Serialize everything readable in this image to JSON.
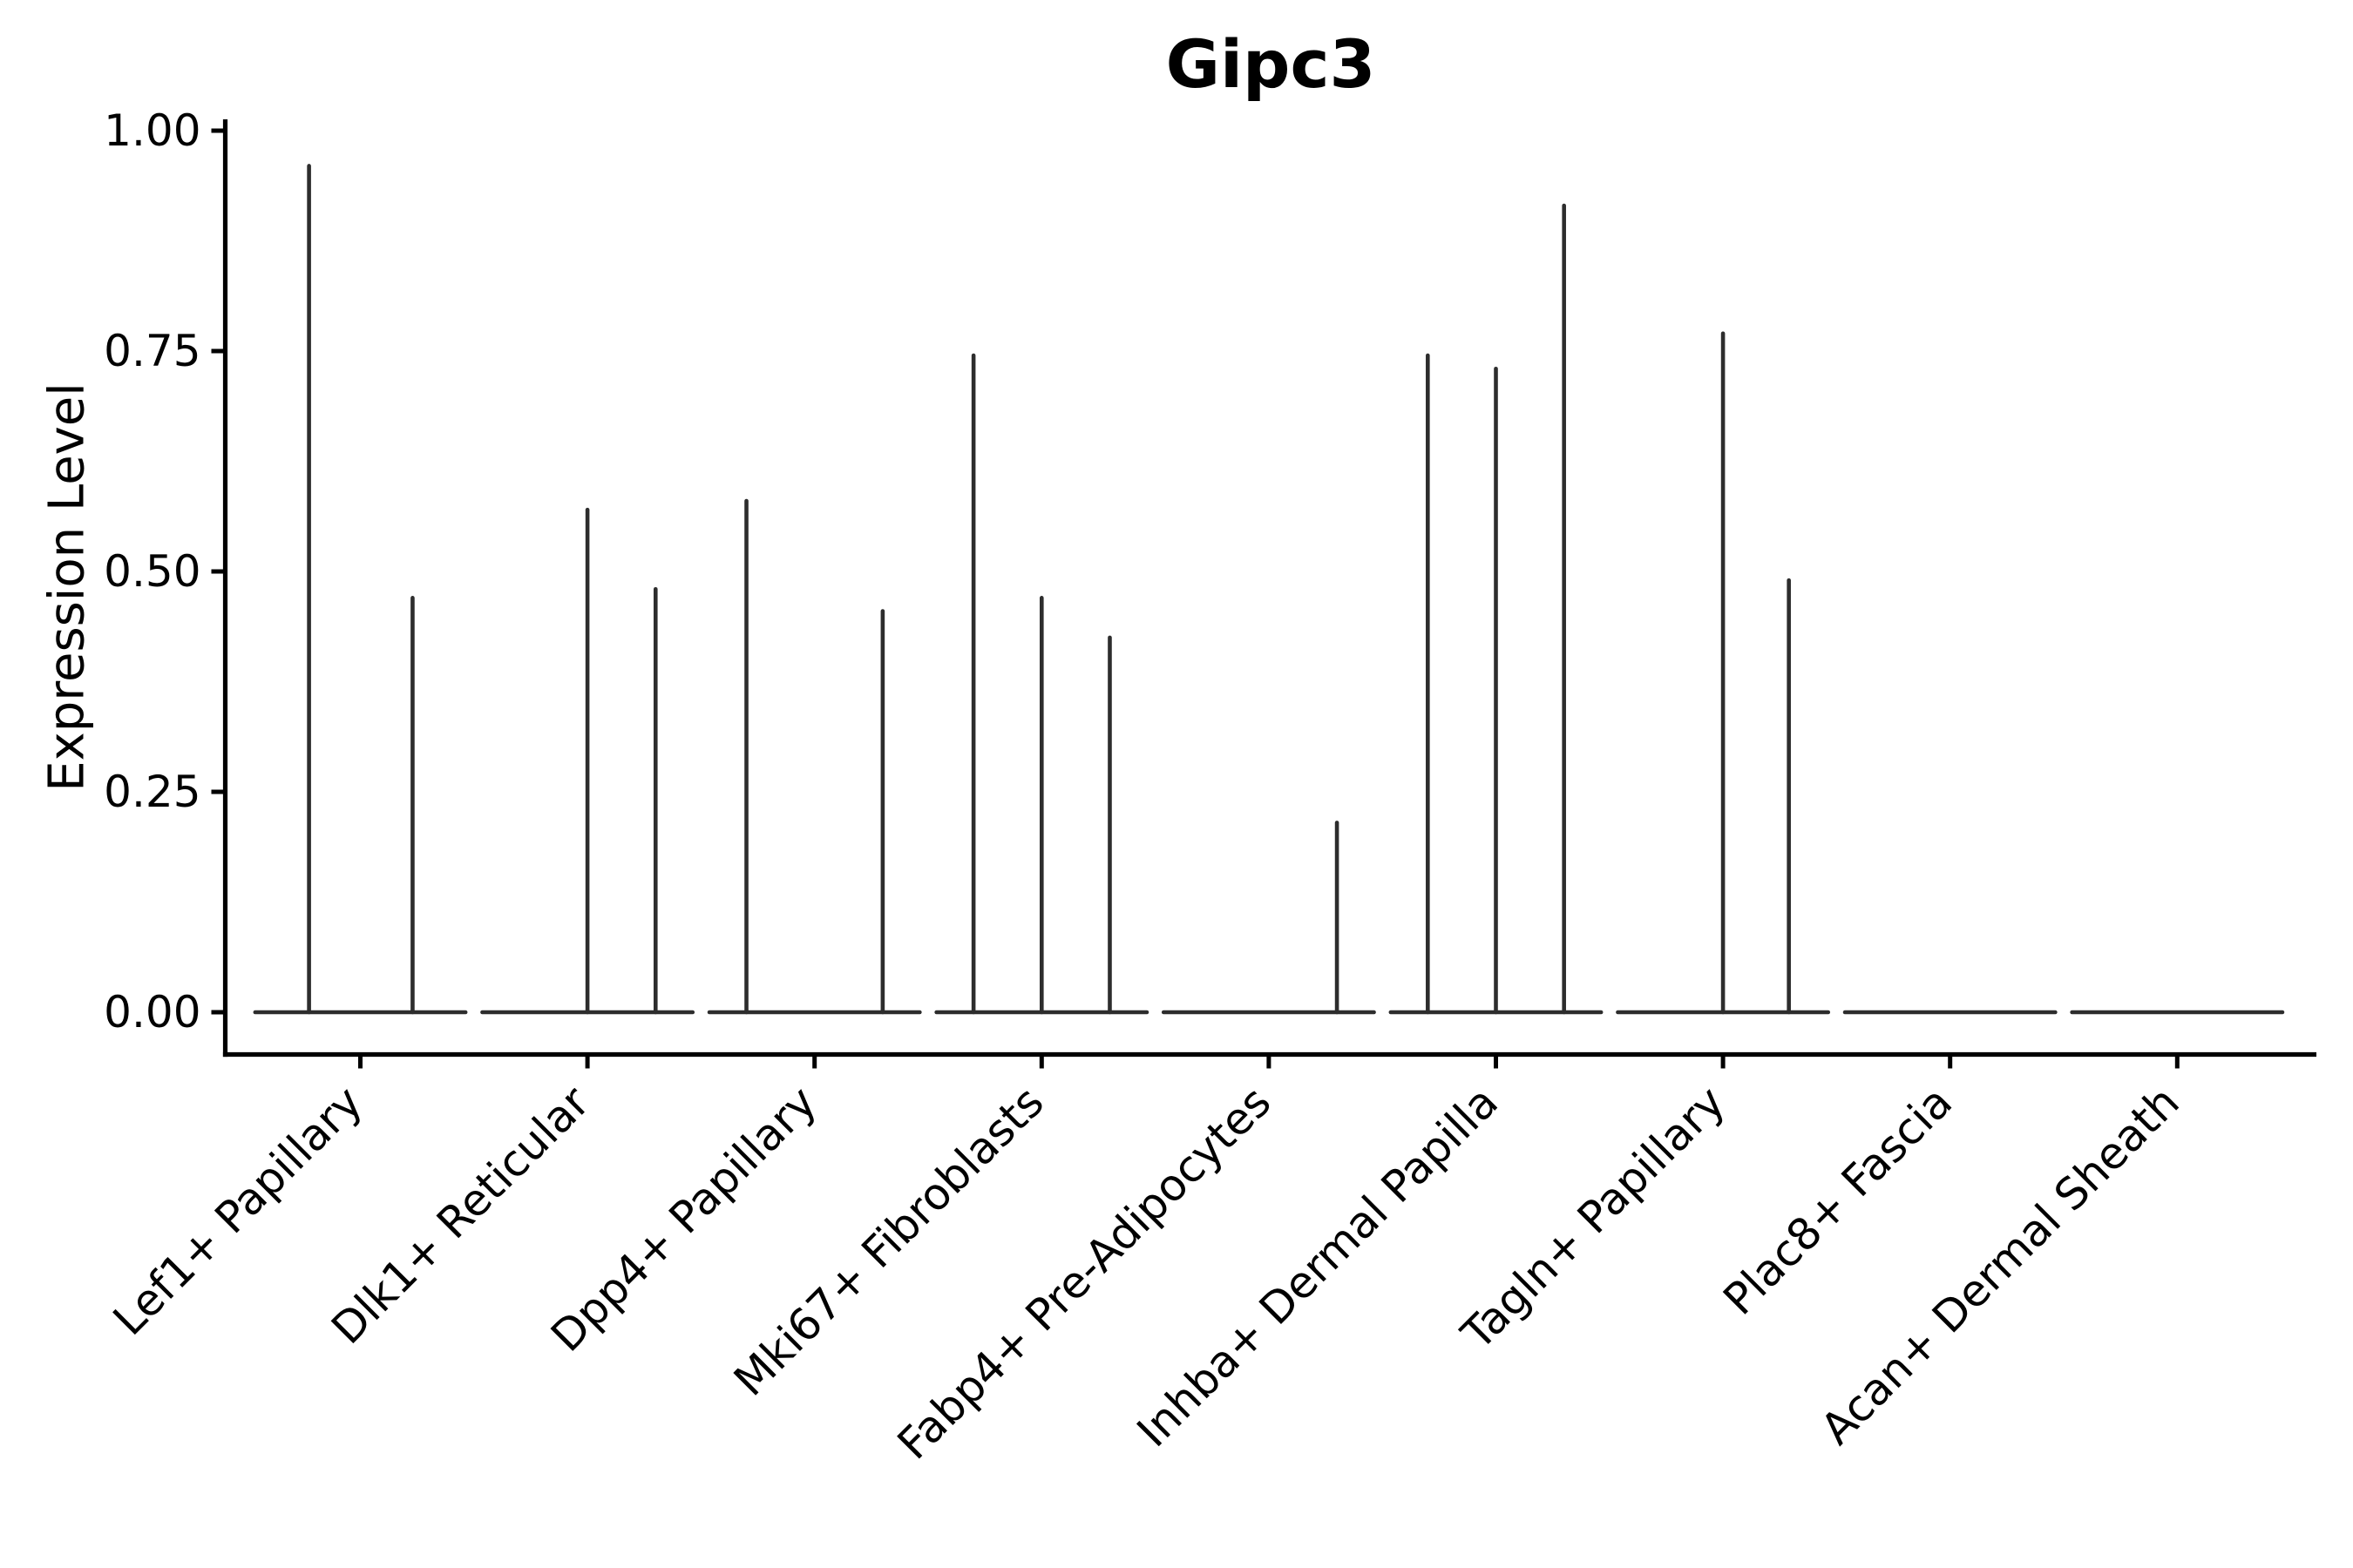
{
  "chart_data": {
    "type": "violin",
    "title": "Gipc3",
    "ylabel": "Expression Level",
    "xlabel": "",
    "ylim": [
      0,
      1
    ],
    "grid": false,
    "legend": "none",
    "violin_color": "#2d2d2d",
    "axis_color": "#000000",
    "yticks": [
      {
        "value": 0.0,
        "label": "0.00"
      },
      {
        "value": 0.25,
        "label": "0.25"
      },
      {
        "value": 0.5,
        "label": "0.50"
      },
      {
        "value": 0.75,
        "label": "0.75"
      },
      {
        "value": 1.0,
        "label": "1.00"
      }
    ],
    "baseline_halfwidth_frac": 0.463,
    "categories": [
      {
        "label": "Lef1+ Papillary",
        "spikes": [
          {
            "offset": -0.226,
            "max": 0.96
          },
          {
            "offset": 0.23,
            "max": 0.47
          }
        ]
      },
      {
        "label": "Dlk1+ Reticular",
        "spikes": [
          {
            "offset": 0.0,
            "max": 0.57
          },
          {
            "offset": 0.3,
            "max": 0.48
          }
        ]
      },
      {
        "label": "Dpp4+ Papillary",
        "spikes": [
          {
            "offset": -0.3,
            "max": 0.58
          },
          {
            "offset": 0.3,
            "max": 0.455
          }
        ]
      },
      {
        "label": "Mki67+ Fibroblasts",
        "spikes": [
          {
            "offset": -0.3,
            "max": 0.745
          },
          {
            "offset": 0.0,
            "max": 0.47
          },
          {
            "offset": 0.3,
            "max": 0.425
          }
        ]
      },
      {
        "label": "Fabp4+ Pre-Adipocytes",
        "spikes": [
          {
            "offset": 0.3,
            "max": 0.215
          }
        ]
      },
      {
        "label": "Inhba+ Dermal Papilla",
        "spikes": [
          {
            "offset": -0.3,
            "max": 0.745
          },
          {
            "offset": 0.0,
            "max": 0.73
          },
          {
            "offset": 0.3,
            "max": 0.915
          }
        ]
      },
      {
        "label": "Tagln+ Papillary",
        "spikes": [
          {
            "offset": 0.0,
            "max": 0.77
          },
          {
            "offset": 0.29,
            "max": 0.49
          }
        ]
      },
      {
        "label": "Plac8+ Fascia",
        "spikes": []
      },
      {
        "label": "Acan+ Dermal Sheath",
        "spikes": []
      }
    ]
  }
}
